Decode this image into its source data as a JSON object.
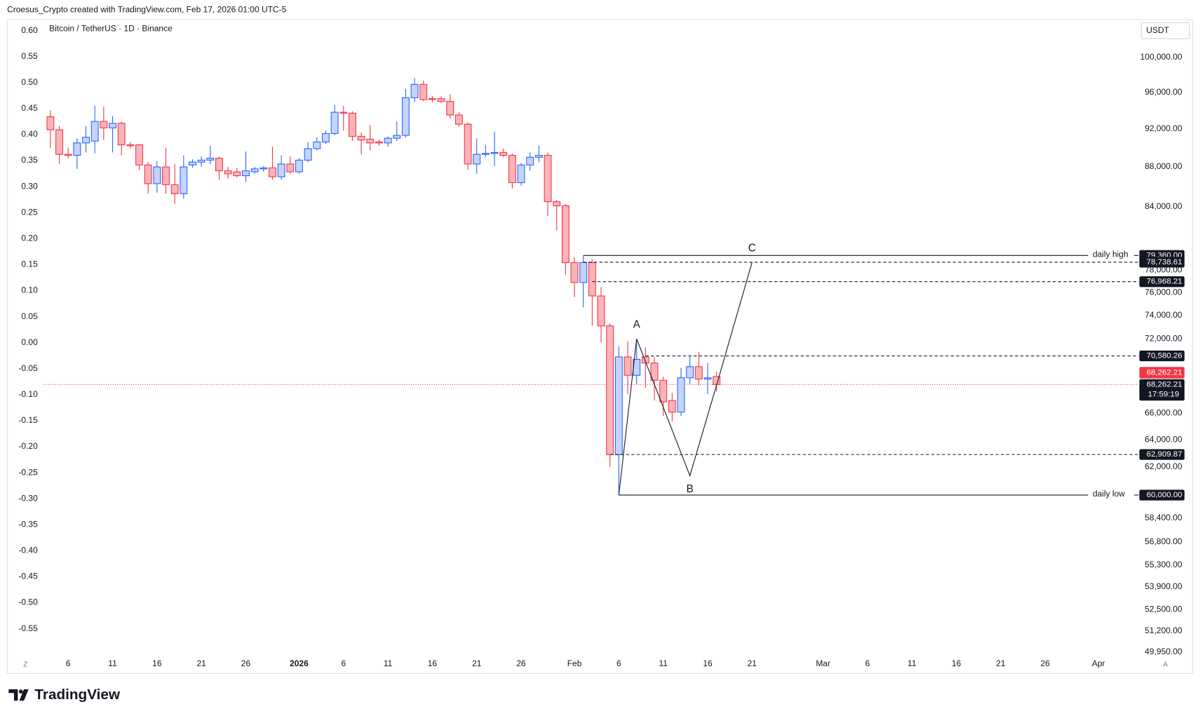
{
  "header": "Croesus_Crypto created with TradingView.com, Feb 17, 2026 01:00 UTC-5",
  "footer_brand": "TradingView",
  "chart_data": {
    "type": "candlestick",
    "title": "Bitcoin / TetherUS · 1D · Binance",
    "currency": "USDT",
    "scale_buttons": [
      "Z",
      "A"
    ],
    "log_scale": true,
    "grid": false,
    "up_color": "#2962ff",
    "up_fill": "#c5d4ff",
    "down_color": "#f23645",
    "down_fill": "#f9b4b9",
    "x": [
      "12-04",
      "12-05",
      "12-06",
      "12-07",
      "12-08",
      "12-09",
      "12-10",
      "12-11",
      "12-12",
      "12-13",
      "12-14",
      "12-15",
      "12-16",
      "12-17",
      "12-18",
      "12-19",
      "12-20",
      "12-21",
      "12-22",
      "12-23",
      "12-24",
      "12-25",
      "12-26",
      "12-27",
      "12-28",
      "12-29",
      "12-30",
      "12-31",
      "01-01",
      "01-02",
      "01-03",
      "01-04",
      "01-05",
      "01-06",
      "01-07",
      "01-08",
      "01-09",
      "01-10",
      "01-11",
      "01-12",
      "01-13",
      "01-14",
      "01-15",
      "01-16",
      "01-17",
      "01-18",
      "01-19",
      "01-20",
      "01-21",
      "01-22",
      "01-23",
      "01-24",
      "01-25",
      "01-26",
      "01-27",
      "01-28",
      "01-29",
      "01-30",
      "01-31",
      "02-01",
      "02-02",
      "02-03",
      "02-04",
      "02-05",
      "02-06",
      "02-07",
      "02-08",
      "02-09",
      "02-10",
      "02-11",
      "02-12",
      "02-13",
      "02-14",
      "02-15",
      "02-16",
      "02-17"
    ],
    "open": [
      93300,
      91900,
      89300,
      89200,
      90500,
      90700,
      92800,
      92100,
      92600,
      90300,
      90300,
      88200,
      86300,
      88000,
      86200,
      85300,
      88200,
      88500,
      88700,
      88900,
      87600,
      87500,
      87100,
      87500,
      87800,
      87900,
      87000,
      88300,
      87500,
      88700,
      89900,
      90600,
      91500,
      93800,
      93700,
      91200,
      90900,
      90600,
      90500,
      91000,
      91300,
      95400,
      96900,
      95300,
      95300,
      95000,
      93500,
      92500,
      88300,
      89300,
      89400,
      89500,
      89200,
      86400,
      88200,
      89000,
      89200,
      84500,
      84100,
      78700,
      76900,
      78700,
      75700,
      73100,
      62900,
      70500,
      69000,
      70500,
      70000,
      68600,
      67000,
      66100,
      68800,
      69700,
      68700,
      68900
    ],
    "high": [
      94000,
      92300,
      90000,
      91000,
      92300,
      94500,
      94400,
      93400,
      92800,
      90600,
      90400,
      88500,
      88600,
      90000,
      88300,
      89200,
      88800,
      89100,
      90200,
      89100,
      88000,
      87900,
      89600,
      88000,
      88100,
      90100,
      89200,
      89100,
      88900,
      90600,
      91100,
      91800,
      94600,
      94500,
      93900,
      91600,
      92400,
      90900,
      91200,
      92800,
      96400,
      97600,
      97300,
      95600,
      95600,
      95800,
      93800,
      92700,
      91000,
      90300,
      91700,
      89900,
      89400,
      88400,
      89500,
      90200,
      89500,
      84700,
      84300,
      79200,
      79360,
      79000,
      76500,
      73300,
      71400,
      71800,
      72000,
      71300,
      70500,
      68900,
      67600,
      69600,
      70500,
      70900,
      70000,
      69300
    ],
    "low": [
      90000,
      88300,
      88900,
      87800,
      89500,
      89400,
      90800,
      89500,
      89200,
      89900,
      87700,
      85300,
      85400,
      85300,
      84300,
      84800,
      87900,
      88000,
      88300,
      86700,
      86800,
      86900,
      86500,
      87300,
      87500,
      86700,
      86700,
      87300,
      87300,
      88500,
      89700,
      90400,
      91300,
      91800,
      90700,
      89300,
      89700,
      90200,
      90100,
      90700,
      91100,
      94900,
      95000,
      94900,
      94800,
      93100,
      92200,
      87700,
      87300,
      89000,
      88100,
      89000,
      85800,
      86100,
      87600,
      88500,
      83100,
      81700,
      77600,
      75600,
      74700,
      73100,
      71700,
      62000,
      60000,
      67500,
      68300,
      68000,
      67000,
      65800,
      65400,
      65800,
      68300,
      68200,
      67500,
      67700
    ],
    "close": [
      91900,
      89300,
      89200,
      90500,
      91100,
      92800,
      92100,
      92600,
      90300,
      90200,
      88200,
      86300,
      88000,
      86200,
      85300,
      88000,
      88500,
      88700,
      88900,
      87600,
      87300,
      87100,
      87600,
      87800,
      87900,
      87000,
      88300,
      87500,
      88700,
      89900,
      90600,
      91500,
      93800,
      93700,
      91200,
      90800,
      90500,
      90500,
      91000,
      91300,
      95400,
      96900,
      95200,
      95200,
      95000,
      93500,
      92500,
      88300,
      89300,
      89400,
      89500,
      89200,
      86400,
      88200,
      89000,
      89200,
      84500,
      84100,
      78700,
      76900,
      78700,
      75700,
      73100,
      62900,
      70500,
      69000,
      70300,
      70000,
      68600,
      66900,
      66100,
      68800,
      69700,
      68700,
      68800,
      68262.21
    ],
    "xlim": [
      "12-03",
      "04-05"
    ],
    "xticks": [
      {
        "value": "12-06",
        "label": "6"
      },
      {
        "value": "12-11",
        "label": "11"
      },
      {
        "value": "12-16",
        "label": "16"
      },
      {
        "value": "12-21",
        "label": "21"
      },
      {
        "value": "12-26",
        "label": "26"
      },
      {
        "value": "01-01",
        "label": "2026"
      },
      {
        "value": "01-06",
        "label": "6"
      },
      {
        "value": "01-11",
        "label": "11"
      },
      {
        "value": "01-16",
        "label": "16"
      },
      {
        "value": "01-21",
        "label": "21"
      },
      {
        "value": "01-26",
        "label": "26"
      },
      {
        "value": "02-01",
        "label": "Feb"
      },
      {
        "value": "02-06",
        "label": "6"
      },
      {
        "value": "02-11",
        "label": "11"
      },
      {
        "value": "02-16",
        "label": "16"
      },
      {
        "value": "02-21",
        "label": "21"
      },
      {
        "value": "03-01",
        "label": "Mar"
      },
      {
        "value": "03-06",
        "label": "6"
      },
      {
        "value": "03-11",
        "label": "11"
      },
      {
        "value": "03-16",
        "label": "16"
      },
      {
        "value": "03-21",
        "label": "21"
      },
      {
        "value": "03-26",
        "label": "26"
      },
      {
        "value": "04-01",
        "label": "Apr"
      }
    ],
    "ylim": [
      49840,
      104290
    ],
    "yticks": [
      {
        "value": 100000,
        "label": "100,000.00"
      },
      {
        "value": 96000,
        "label": "96,000.00"
      },
      {
        "value": 92000,
        "label": "92,000.00"
      },
      {
        "value": 88000,
        "label": "88,000.00"
      },
      {
        "value": 84000,
        "label": "84,000.00"
      },
      {
        "value": 78000,
        "label": "78,000.00"
      },
      {
        "value": 76000,
        "label": "76,000.00"
      },
      {
        "value": 74000,
        "label": "74,000.00"
      },
      {
        "value": 72000,
        "label": "72,000.00"
      },
      {
        "value": 66000,
        "label": "66,000.00"
      },
      {
        "value": 64000,
        "label": "64,000.00"
      },
      {
        "value": 62000,
        "label": "62,000.00"
      },
      {
        "value": 58400,
        "label": "58,400.00"
      },
      {
        "value": 56800,
        "label": "56,800.00"
      },
      {
        "value": 55300,
        "label": "55,300.00"
      },
      {
        "value": 53900,
        "label": "53,900.00"
      },
      {
        "value": 52500,
        "label": "52,500.00"
      },
      {
        "value": 51200,
        "label": "51,200.00"
      },
      {
        "value": 49950,
        "label": "49,950.00"
      }
    ],
    "y2lim": [
      -0.5985,
      0.6176
    ],
    "y2ticks": [
      {
        "value": 0.6,
        "label": "0.60"
      },
      {
        "value": 0.55,
        "label": "0.55"
      },
      {
        "value": 0.5,
        "label": "0.50"
      },
      {
        "value": 0.45,
        "label": "0.45"
      },
      {
        "value": 0.4,
        "label": "0.40"
      },
      {
        "value": 0.35,
        "label": "0.35"
      },
      {
        "value": 0.3,
        "label": "0.30"
      },
      {
        "value": 0.25,
        "label": "0.25"
      },
      {
        "value": 0.2,
        "label": "0.20"
      },
      {
        "value": 0.15,
        "label": "0.15"
      },
      {
        "value": 0.1,
        "label": "0.10"
      },
      {
        "value": 0.05,
        "label": "0.05"
      },
      {
        "value": 0,
        "label": "0.00"
      },
      {
        "value": -0.05,
        "label": "-0.05"
      },
      {
        "value": -0.1,
        "label": "-0.10"
      },
      {
        "value": -0.15,
        "label": "-0.15"
      },
      {
        "value": -0.2,
        "label": "-0.20"
      },
      {
        "value": -0.25,
        "label": "-0.25"
      },
      {
        "value": -0.3,
        "label": "-0.30"
      },
      {
        "value": -0.35,
        "label": "-0.35"
      },
      {
        "value": -0.4,
        "label": "-0.40"
      },
      {
        "value": -0.45,
        "label": "-0.45"
      },
      {
        "value": -0.5,
        "label": "-0.50"
      },
      {
        "value": -0.55,
        "label": "-0.55"
      }
    ],
    "levels": [
      {
        "value": 79360,
        "label": "79,360.00",
        "start": "02-02",
        "style": "solid",
        "text": "daily high"
      },
      {
        "value": 78738.61,
        "label": "78,738.61",
        "start": "02-02",
        "style": "dashed"
      },
      {
        "value": 76968.21,
        "label": "76,968.21",
        "start": "02-03",
        "style": "dashed"
      },
      {
        "value": 70580.26,
        "label": "70,580.26",
        "start": "02-09",
        "style": "dashed"
      },
      {
        "value": 62909.87,
        "label": "62,909.87",
        "start": "02-05",
        "style": "dashed"
      },
      {
        "value": 60000,
        "label": "60,000.00",
        "start": "02-06",
        "style": "solid",
        "text": "daily low"
      }
    ],
    "last_price": {
      "value": 68262.21,
      "label": "68,262.21",
      "countdown": "17:59:19",
      "color": "#f23645"
    },
    "wave": [
      {
        "x": "02-06",
        "value": 60000
      },
      {
        "x": "02-08",
        "value": 72000,
        "label": "A"
      },
      {
        "x": "02-14",
        "value": 61370,
        "label": "B"
      },
      {
        "x": "02-17",
        "value": 68200
      },
      {
        "x": "02-21",
        "value": 78740,
        "label": "C"
      }
    ]
  }
}
